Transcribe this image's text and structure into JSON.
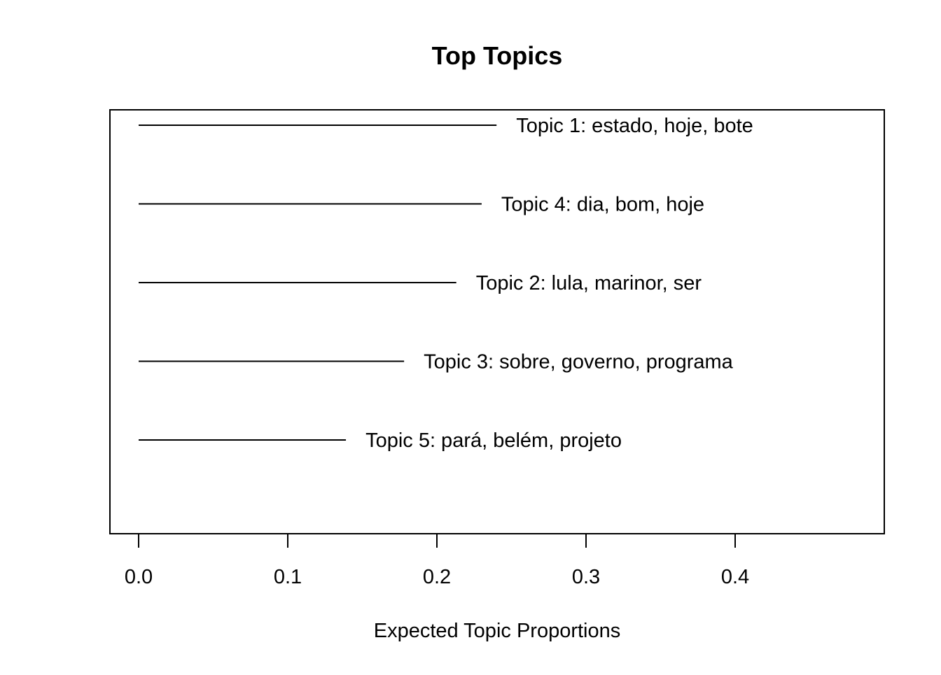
{
  "chart_data": {
    "type": "bar",
    "orientation": "horizontal",
    "title": "Top Topics",
    "subtitle": "",
    "xlabel": "Expected Topic Proportions",
    "ylabel": "",
    "xlim": [
      0.0,
      0.5
    ],
    "ticks": [
      "0.0",
      "0.1",
      "0.2",
      "0.3",
      "0.4"
    ],
    "grid": false,
    "legend": "none",
    "categories": [
      "Topic 1: estado, hoje, bote",
      "Topic 4: dia, bom, hoje",
      "Topic 2: lula, marinor, ser",
      "Topic 3: sobre, governo, programa",
      "Topic 5: pará, belém, projeto"
    ],
    "values": [
      0.24,
      0.23,
      0.213,
      0.178,
      0.139
    ]
  },
  "colors": {
    "line": "#000000",
    "background": "#ffffff"
  }
}
